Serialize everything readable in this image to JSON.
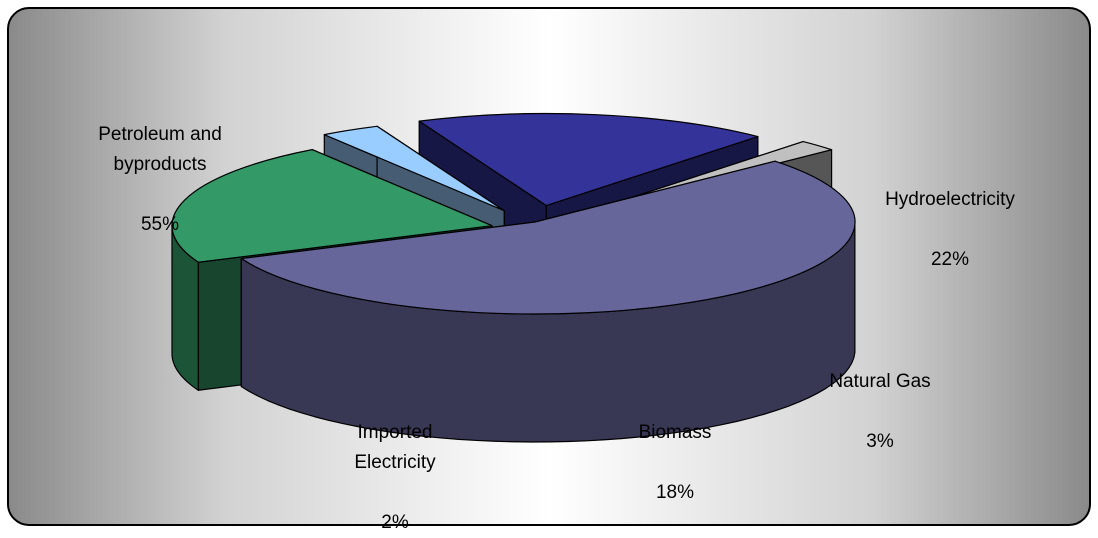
{
  "chart_data": {
    "type": "pie",
    "title": "",
    "three_d": true,
    "exploded": true,
    "legend": "none",
    "slices": [
      {
        "name": "Petroleum and byproducts",
        "value": 55,
        "label": "55%",
        "color": "#66669a"
      },
      {
        "name": "Hydroelectricity",
        "value": 22,
        "label": "22%",
        "color": "#339966"
      },
      {
        "name": "Natural Gas",
        "value": 3,
        "label": "3%",
        "color": "#99ccff"
      },
      {
        "name": "Biomass",
        "value": 18,
        "label": "18%",
        "color": "#333399"
      },
      {
        "name": "Imported Electricity",
        "value": 2,
        "label": "2%",
        "color": "#c0c0c0"
      }
    ]
  }
}
